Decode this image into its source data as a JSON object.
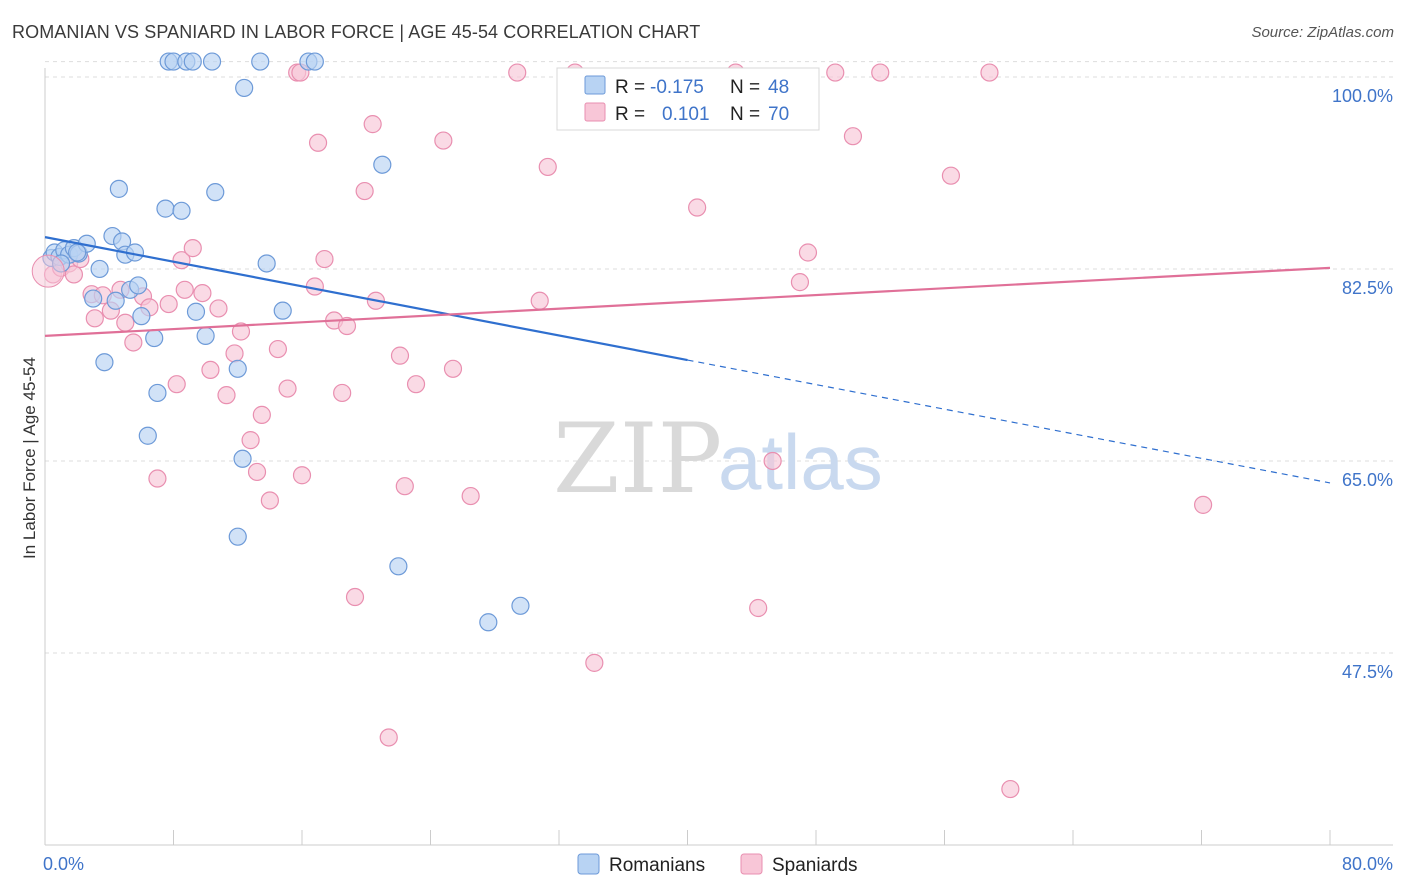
{
  "title": "ROMANIAN VS SPANIARD IN LABOR FORCE | AGE 45-54 CORRELATION CHART",
  "source": "Source: ZipAtlas.com",
  "watermark": {
    "zip": "ZIP",
    "atlas": "atlas"
  },
  "colors": {
    "romanians_fill": "#b8d3f3",
    "romanians_stroke": "#6d9ad8",
    "romanians_line": "#2f6fcf",
    "spaniards_fill": "#f8c6d7",
    "spaniards_stroke": "#e98fb0",
    "spaniards_line": "#e07098",
    "grid": "#dddddd",
    "tick_label": "#3f74c9"
  },
  "legend": {
    "rows": [
      {
        "r_label": "R =",
        "r_value": "-0.175",
        "n_label": "N =",
        "n_value": "48"
      },
      {
        "r_label": "R =",
        "r_value": "0.101",
        "n_label": "N =",
        "n_value": "70"
      }
    ]
  },
  "chart_data": {
    "type": "scatter",
    "ylabel": "In Labor Force | Age 45-54",
    "xlim": [
      0,
      80
    ],
    "ylim": [
      30,
      102
    ],
    "x_tick_labels": [
      "0.0%",
      "80.0%"
    ],
    "y_tick_labels": [
      "100.0%",
      "82.5%",
      "65.0%",
      "47.5%"
    ],
    "y_ticks": [
      100.0,
      82.5,
      65.0,
      47.5
    ],
    "legend_placement": "top-center",
    "series": [
      {
        "name": "Romanians",
        "trend": {
          "x0": 0,
          "y0": 85.4,
          "x1": 40,
          "y1": 74.2,
          "dash_to_x": 80,
          "dash_to_y": 63.0
        },
        "points": [
          [
            0.4,
            83.5
          ],
          [
            0.6,
            84.0
          ],
          [
            0.9,
            83.6
          ],
          [
            1.2,
            84.2
          ],
          [
            1.5,
            83.8
          ],
          [
            1.8,
            84.4
          ],
          [
            2.1,
            83.9
          ],
          [
            2.6,
            84.8
          ],
          [
            3.4,
            82.5
          ],
          [
            3.7,
            74.0
          ],
          [
            4.2,
            85.5
          ],
          [
            4.6,
            89.8
          ],
          [
            4.8,
            85.0
          ],
          [
            5.0,
            83.8
          ],
          [
            5.3,
            80.6
          ],
          [
            5.8,
            81.0
          ],
          [
            6.0,
            78.2
          ],
          [
            6.4,
            67.3
          ],
          [
            6.8,
            76.2
          ],
          [
            7.0,
            71.2
          ],
          [
            7.5,
            88.0
          ],
          [
            7.7,
            101.4
          ],
          [
            8.0,
            101.4
          ],
          [
            8.5,
            87.8
          ],
          [
            8.8,
            101.4
          ],
          [
            9.2,
            101.4
          ],
          [
            9.4,
            78.6
          ],
          [
            10.0,
            76.4
          ],
          [
            10.4,
            101.4
          ],
          [
            10.6,
            89.5
          ],
          [
            12.0,
            73.4
          ],
          [
            12.3,
            65.2
          ],
          [
            12.0,
            58.1
          ],
          [
            12.4,
            99.0
          ],
          [
            13.4,
            101.4
          ],
          [
            13.8,
            83.0
          ],
          [
            14.8,
            78.7
          ],
          [
            16.4,
            101.4
          ],
          [
            16.8,
            101.4
          ],
          [
            21.0,
            92.0
          ],
          [
            22.0,
            55.4
          ],
          [
            27.6,
            50.3
          ],
          [
            29.6,
            51.8
          ],
          [
            1.0,
            83.0
          ],
          [
            2.0,
            84.0
          ],
          [
            3.0,
            79.8
          ],
          [
            4.4,
            79.6
          ],
          [
            5.6,
            84.0
          ]
        ]
      },
      {
        "name": "Spaniards",
        "trend": {
          "x0": 0,
          "y0": 76.4,
          "x1": 80,
          "y1": 82.6
        },
        "points": [
          [
            0.5,
            82.0
          ],
          [
            1.0,
            82.6
          ],
          [
            1.5,
            83.0
          ],
          [
            1.8,
            82.0
          ],
          [
            2.2,
            83.4
          ],
          [
            2.9,
            80.2
          ],
          [
            3.1,
            78.0
          ],
          [
            3.6,
            80.1
          ],
          [
            4.1,
            78.7
          ],
          [
            4.7,
            80.6
          ],
          [
            5.0,
            77.6
          ],
          [
            5.5,
            75.8
          ],
          [
            6.1,
            80.0
          ],
          [
            6.5,
            79.0
          ],
          [
            7.0,
            63.4
          ],
          [
            7.7,
            79.3
          ],
          [
            8.2,
            72.0
          ],
          [
            8.5,
            83.3
          ],
          [
            8.7,
            80.6
          ],
          [
            9.2,
            84.4
          ],
          [
            9.8,
            80.3
          ],
          [
            10.3,
            73.3
          ],
          [
            10.8,
            78.9
          ],
          [
            11.3,
            71.0
          ],
          [
            11.8,
            74.8
          ],
          [
            12.2,
            76.8
          ],
          [
            12.8,
            66.9
          ],
          [
            13.2,
            64.0
          ],
          [
            13.5,
            69.2
          ],
          [
            14.0,
            61.4
          ],
          [
            14.5,
            75.2
          ],
          [
            15.1,
            71.6
          ],
          [
            15.7,
            100.4
          ],
          [
            15.9,
            100.4
          ],
          [
            16.0,
            63.7
          ],
          [
            16.8,
            80.9
          ],
          [
            17.0,
            94.0
          ],
          [
            17.4,
            83.4
          ],
          [
            18.0,
            77.8
          ],
          [
            18.5,
            71.2
          ],
          [
            18.8,
            77.3
          ],
          [
            19.3,
            52.6
          ],
          [
            19.9,
            89.6
          ],
          [
            20.4,
            95.7
          ],
          [
            20.6,
            79.6
          ],
          [
            21.4,
            39.8
          ],
          [
            22.1,
            74.6
          ],
          [
            22.4,
            62.7
          ],
          [
            23.1,
            72.0
          ],
          [
            24.8,
            94.2
          ],
          [
            25.4,
            73.4
          ],
          [
            26.5,
            61.8
          ],
          [
            29.4,
            100.4
          ],
          [
            30.8,
            79.6
          ],
          [
            31.3,
            91.8
          ],
          [
            33.0,
            100.4
          ],
          [
            34.2,
            46.6
          ],
          [
            40.6,
            88.1
          ],
          [
            43.0,
            100.4
          ],
          [
            44.4,
            51.6
          ],
          [
            45.3,
            65.0
          ],
          [
            47.0,
            81.3
          ],
          [
            47.5,
            84.0
          ],
          [
            49.2,
            100.4
          ],
          [
            50.3,
            94.6
          ],
          [
            52.0,
            100.4
          ],
          [
            56.4,
            91.0
          ],
          [
            58.8,
            100.4
          ],
          [
            60.1,
            35.1
          ],
          [
            72.1,
            61.0
          ]
        ]
      }
    ]
  }
}
